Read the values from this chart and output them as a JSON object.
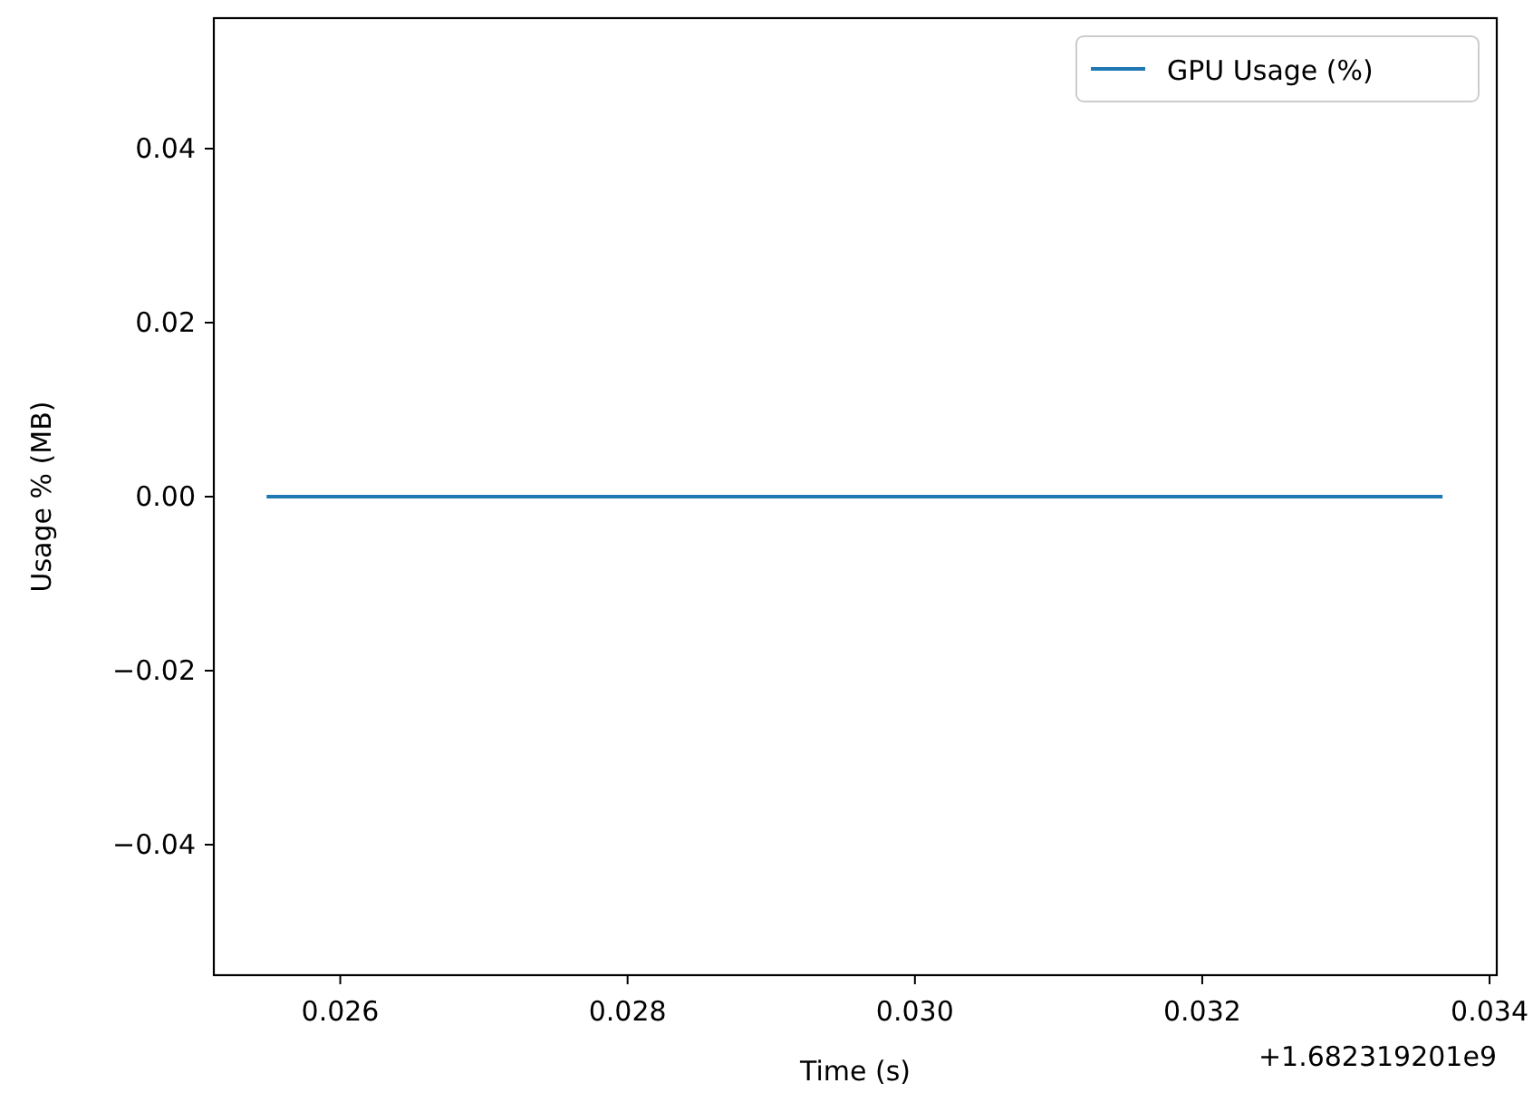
{
  "chart_data": {
    "type": "line",
    "xlabel": "Time (s)",
    "ylabel": "Usage % (MB)",
    "x": [
      0.0255,
      0.03366
    ],
    "series": [
      {
        "name": "GPU Usage (%)",
        "color": "#1f77b4",
        "values": [
          0,
          0
        ]
      }
    ],
    "xlim": [
      0.02512,
      0.03405
    ],
    "xticks": [
      {
        "value": 0.026,
        "label": "0.026"
      },
      {
        "value": 0.028,
        "label": "0.028"
      },
      {
        "value": 0.03,
        "label": "0.030"
      },
      {
        "value": 0.032,
        "label": "0.032"
      },
      {
        "value": 0.034,
        "label": "0.034"
      }
    ],
    "ylim": [
      -0.055,
      0.055
    ],
    "yticks": [
      {
        "value": -0.04,
        "label": "−0.04"
      },
      {
        "value": -0.02,
        "label": "−0.02"
      },
      {
        "value": 0,
        "label": "0.00"
      },
      {
        "value": 0.02,
        "label": "0.02"
      },
      {
        "value": 0.04,
        "label": "0.04"
      }
    ],
    "annotations": [
      "+1.682319201e9"
    ],
    "legend": "top right",
    "grid": false,
    "marker": "none",
    "line_style": "solid"
  }
}
